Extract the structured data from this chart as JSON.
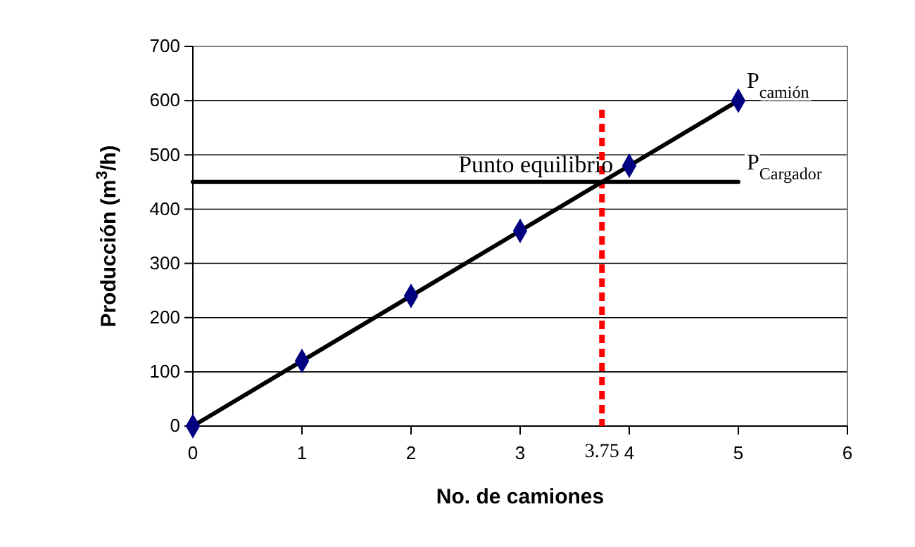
{
  "chart_data": {
    "type": "line",
    "xlabel": "No. de camiones",
    "ylabel": "Producción (m$^{3}$/h)",
    "xlim": [
      0,
      6
    ],
    "xticks": [
      0,
      1,
      2,
      3,
      4,
      5,
      6
    ],
    "ylim": [
      0,
      700
    ],
    "yticks": [
      0,
      100,
      200,
      300,
      400,
      500,
      600,
      700
    ],
    "grid": "y",
    "legend": false,
    "series": [
      {
        "name": "P$_{camión}$",
        "color": "#000000",
        "colors": [
          "#000080",
          "#000080",
          "#000080",
          "#000080",
          "#000080",
          "#000080"
        ],
        "marker": "diamond",
        "x": [
          0,
          1,
          2,
          3,
          4,
          5
        ],
        "values": [
          0,
          120,
          240,
          360,
          480,
          600
        ]
      },
      {
        "name": "P$_{Cargador}$",
        "color": "#000000",
        "marker": "none",
        "x": [
          0,
          5
        ],
        "values": [
          450,
          450
        ]
      }
    ],
    "ref_lines": [
      {
        "axis": "x",
        "value": 3.75,
        "label": "3.75",
        "color": "#ff0000",
        "line_style": "dashed"
      }
    ],
    "annotations": [
      {
        "text": "Punto equilibrio",
        "x": 3.75,
        "y": 450
      }
    ]
  }
}
